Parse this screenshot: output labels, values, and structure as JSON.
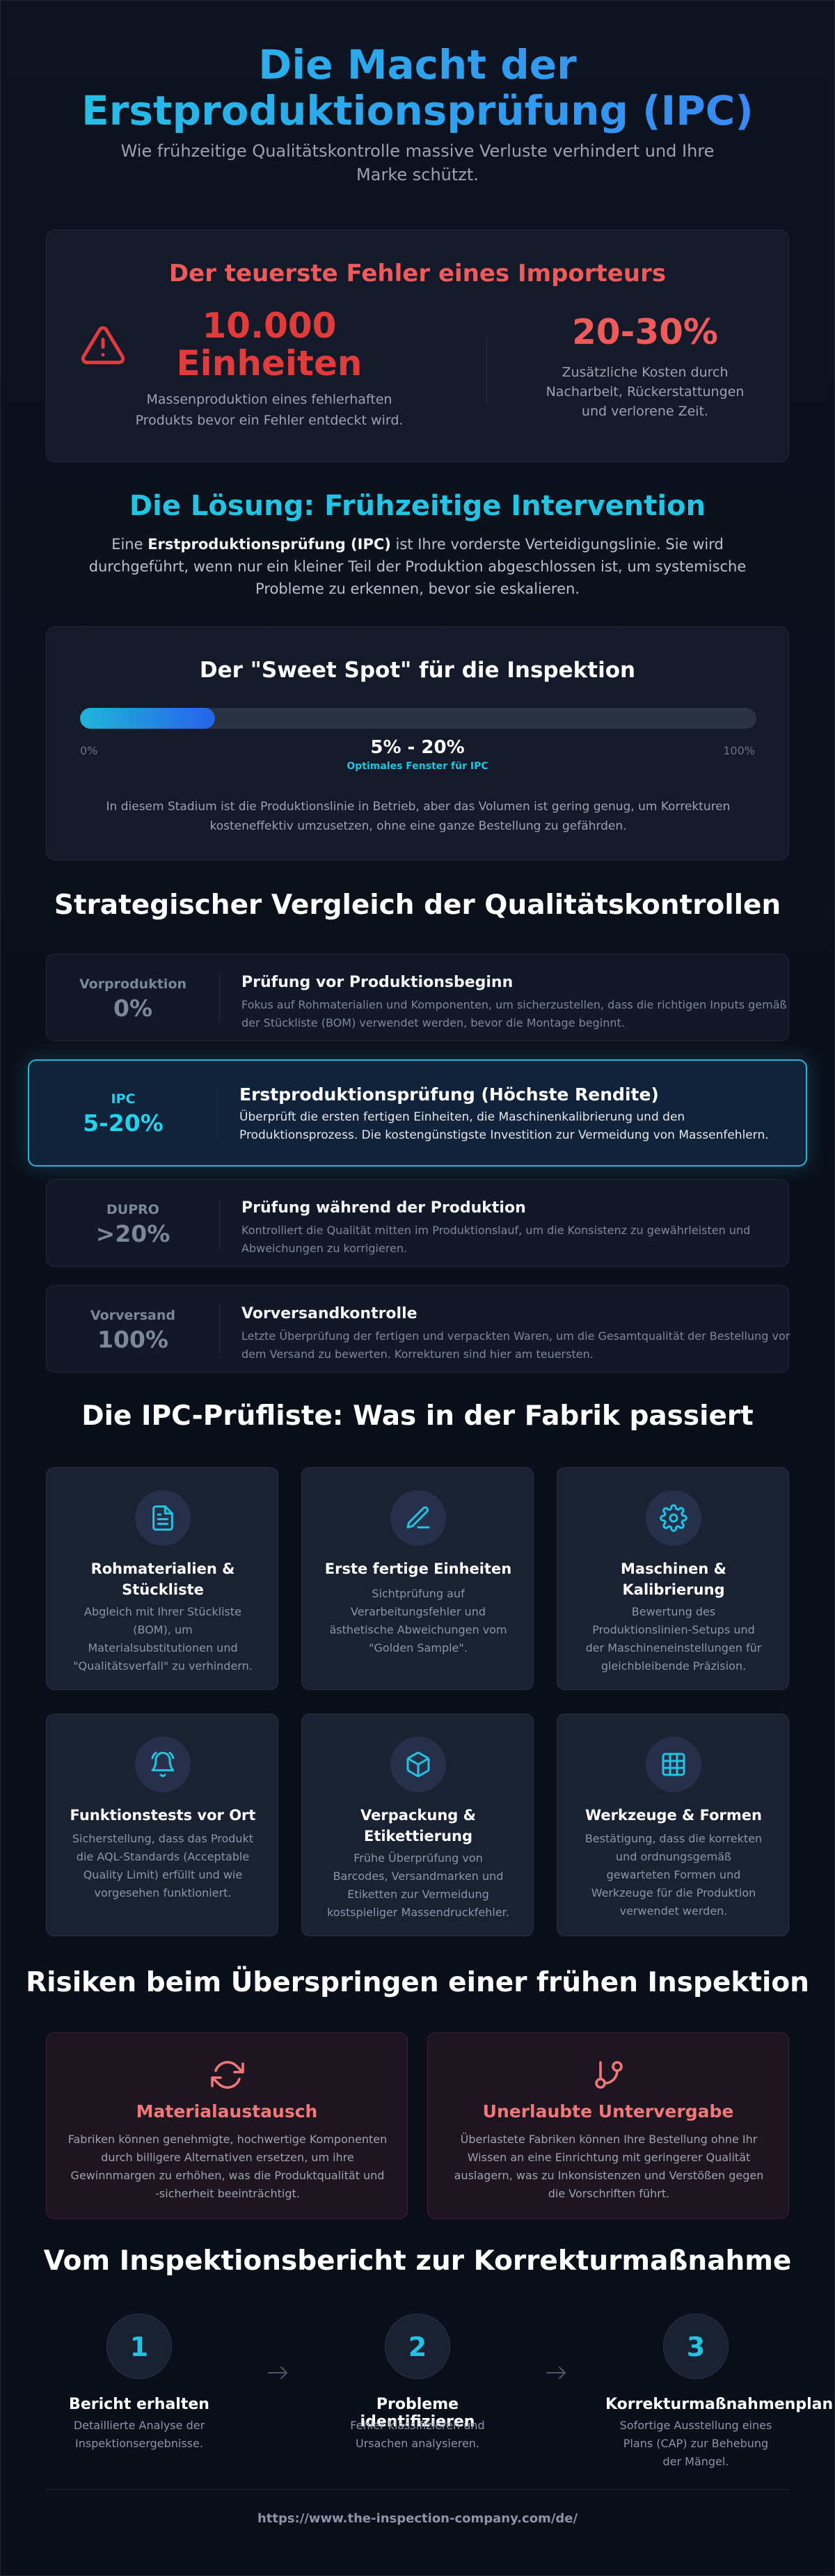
{
  "hero": {
    "title_line1": "Die Macht der",
    "title_line2": "Erstproduktionsprüfung (IPC)",
    "subtitle": "Wie frühzeitige Qualitätskontrolle massive Verluste verhindert und Ihre Marke schützt."
  },
  "danger": {
    "title": "Der teuerste Fehler eines Importeurs",
    "icon": "warning-triangle-icon",
    "left_value": "10.000 Einheiten",
    "left_desc": "Massenproduktion eines fehlerhaften Produkts bevor ein Fehler entdeckt wird.",
    "right_value": "20-30%",
    "right_desc": "Zusätzliche Kosten durch Nacharbeit, Rückerstattungen und verlorene Zeit."
  },
  "solution": {
    "title": "Die Lösung: Frühzeitige Intervention",
    "text_prefix": "Eine ",
    "text_bold": "Erstproduktionsprüfung (IPC)",
    "text_suffix": " ist Ihre vorderste Verteidigungslinie. Sie wird durchgeführt, wenn nur ein kleiner Teil der Produktion abgeschlossen ist, um systemische Probleme zu erkennen, bevor sie eskalieren."
  },
  "sweet_spot": {
    "title": "Der \"Sweet Spot\" für die Inspektion",
    "min_label": "0%",
    "max_label": "100%",
    "range_label": "5% - 20%",
    "window_label": "Optimales Fenster für IPC",
    "fill_percent": 20,
    "desc": "In diesem Stadium ist die Produktionslinie in Betrieb, aber das Volumen ist gering genug, um Korrekturen kosteneffektiv umzusetzen, ohne eine ganze Bestellung zu gefährden."
  },
  "comparison": {
    "title": "Strategischer Vergleich der Qualitätskontrollen",
    "rows": [
      {
        "phase": "Vorproduktion",
        "value": "0%",
        "title": "Prüfung vor Produktionsbeginn",
        "desc": "Fokus auf Rohmaterialien und Komponenten, um sicherzustellen, dass die richtigen Inputs gemäß der Stückliste (BOM) verwendet werden, bevor die Montage beginnt."
      },
      {
        "phase": "IPC",
        "value": "5-20%",
        "title": "Erstproduktionsprüfung (Höchste Rendite)",
        "desc": "Überprüft die ersten fertigen Einheiten, die Maschinenkalibrierung und den Produktionsprozess. Die kostengünstigste Investition zur Vermeidung von Massenfehlern."
      },
      {
        "phase": "DUPRO",
        "value": ">20%",
        "title": "Prüfung während der Produktion",
        "desc": "Kontrolliert die Qualität mitten im Produktionslauf, um die Konsistenz zu gewährleisten und Abweichungen zu korrigieren."
      },
      {
        "phase": "Vorversand",
        "value": "100%",
        "title": "Vorversandkontrolle",
        "desc": "Letzte Überprüfung der fertigen und verpackten Waren, um die Gesamtqualität der Bestellung vor dem Versand zu bewerten. Korrekturen sind hier am teuersten."
      }
    ]
  },
  "checklist": {
    "title": "Die IPC-Prüfliste: Was in der Fabrik passiert",
    "items": [
      {
        "icon": "document-icon",
        "title": "Rohmaterialien & Stückliste",
        "desc": "Abgleich mit Ihrer Stückliste (BOM), um Materialsubstitutionen und \"Qualitätsverfall\" zu verhindern."
      },
      {
        "icon": "pencil-icon",
        "title": "Erste fertige Einheiten",
        "desc": "Sichtprüfung auf Verarbeitungsfehler und ästhetische Abweichungen vom \"Golden Sample\"."
      },
      {
        "icon": "gear-icon",
        "title": "Maschinen & Kalibrierung",
        "desc": "Bewertung des Produktionslinien-Setups und der Maschineneinstellungen für gleichbleibende Präzision."
      },
      {
        "icon": "bell-icon",
        "title": "Funktionstests vor Ort",
        "desc": "Sicherstellung, dass das Produkt die AQL-Standards (Acceptable Quality Limit) erfüllt und wie vorgesehen funktioniert."
      },
      {
        "icon": "box-icon",
        "title": "Verpackung & Etikettierung",
        "desc": "Frühe Überprüfung von Barcodes, Versandmarken und Etiketten zur Vermeidung kostspieliger Massendruckfehler."
      },
      {
        "icon": "grid-icon",
        "title": "Werkzeuge & Formen",
        "desc": "Bestätigung, dass die korrekten und ordnungsgemäß gewarteten Formen und Werkzeuge für die Produktion verwendet werden."
      }
    ]
  },
  "risks": {
    "title": "Risiken beim Überspringen einer frühen Inspektion",
    "items": [
      {
        "icon": "refresh-icon",
        "title": "Materialaustausch",
        "desc": "Fabriken können genehmigte, hochwertige Komponenten durch billigere Alternativen ersetzen, um ihre Gewinnmargen zu erhöhen, was die Produktqualität und -sicherheit beeinträchtigt."
      },
      {
        "icon": "branch-icon",
        "title": "Unerlaubte Untervergabe",
        "desc": "Überlastete Fabriken können Ihre Bestellung ohne Ihr Wissen an eine Einrichtung mit geringerer Qualität auslagern, was zu Inkonsistenzen und Verstößen gegen die Vorschriften führt."
      }
    ]
  },
  "flow": {
    "title": "Vom Inspektionsbericht zur Korrekturmaßnahme",
    "steps": [
      {
        "num": "1",
        "title": "Bericht erhalten",
        "desc": "Detaillierte Analyse der Inspektionsergebnisse."
      },
      {
        "num": "2",
        "title": "Probleme identifizieren",
        "desc": "Fehler klassifizieren und Ursachen analysieren."
      },
      {
        "num": "3",
        "title": "Korrekturmaßnahmenplan",
        "desc": "Sofortige Ausstellung eines Plans (CAP) zur Behebung der Mängel."
      }
    ]
  },
  "footer": {
    "url": "https://www.the-inspection-company.com/de/"
  },
  "colors": {
    "background": "#0b0f19",
    "accent_cyan": "#22c4e4",
    "accent_blue": "#2563eb",
    "danger_red": "#ef5a5a"
  }
}
